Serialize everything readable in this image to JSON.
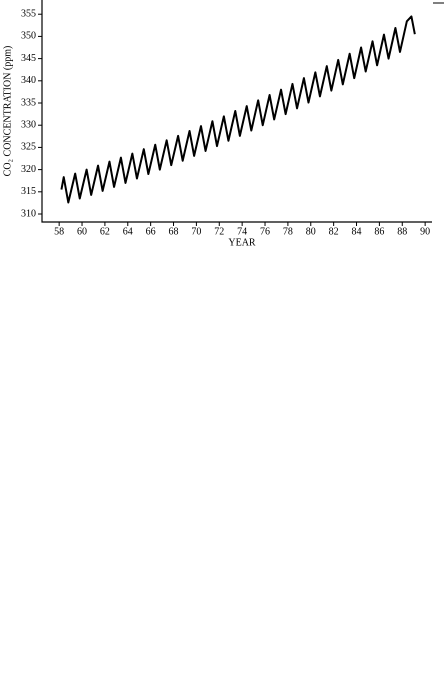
{
  "chart_data": {
    "type": "line",
    "xlabel": "YEAR",
    "ylabel": "CO₂ CONCENTRATION (ppm)",
    "color": "#000000",
    "xlim": [
      56.5,
      90.6
    ],
    "ylim": [
      308.2,
      358.2
    ],
    "xticks": [
      58,
      60,
      62,
      64,
      66,
      68,
      70,
      72,
      74,
      76,
      78,
      80,
      82,
      84,
      86,
      88,
      90
    ],
    "yticks": [
      310,
      315,
      320,
      325,
      330,
      335,
      340,
      345,
      350,
      355
    ],
    "x": [
      58.2,
      58.4,
      58.8,
      59.4,
      59.8,
      60.4,
      60.8,
      61.4,
      61.8,
      62.4,
      62.8,
      63.4,
      63.8,
      64.4,
      64.8,
      65.4,
      65.8,
      66.4,
      66.8,
      67.4,
      67.8,
      68.4,
      68.8,
      69.4,
      69.8,
      70.4,
      70.8,
      71.4,
      71.8,
      72.4,
      72.8,
      73.4,
      73.8,
      74.4,
      74.8,
      75.4,
      75.8,
      76.4,
      76.8,
      77.4,
      77.8,
      78.4,
      78.8,
      79.4,
      79.8,
      80.4,
      80.8,
      81.4,
      81.8,
      82.4,
      82.8,
      83.4,
      83.8,
      84.4,
      84.8,
      85.4,
      85.8,
      86.4,
      86.8,
      87.4,
      87.8,
      88.4,
      88.8,
      89.1
    ],
    "values": [
      315.5,
      318.3,
      312.6,
      319.1,
      313.5,
      320.0,
      314.3,
      320.9,
      315.2,
      321.8,
      316.1,
      322.7,
      317.0,
      323.6,
      318.0,
      324.6,
      319.0,
      325.6,
      320.0,
      326.6,
      321.0,
      327.6,
      322.0,
      328.7,
      323.1,
      329.8,
      324.2,
      330.9,
      325.3,
      332.0,
      326.5,
      333.2,
      327.6,
      334.3,
      328.8,
      335.6,
      330.0,
      336.8,
      331.3,
      338.0,
      332.5,
      339.3,
      333.8,
      340.6,
      335.1,
      341.9,
      336.5,
      343.3,
      337.8,
      344.7,
      339.2,
      346.1,
      340.6,
      347.5,
      342.1,
      348.9,
      343.5,
      350.4,
      345.0,
      351.9,
      346.5,
      353.4,
      354.5,
      350.5
    ]
  }
}
